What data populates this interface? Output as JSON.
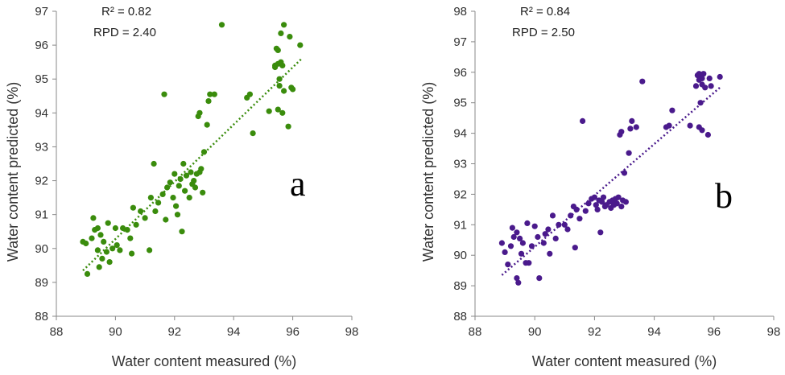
{
  "chart_data": [
    {
      "type": "scatter",
      "panel_label": "a",
      "xlabel": "Water content measured (%)",
      "ylabel": "Water content predicted (%)",
      "xlim": [
        88,
        98
      ],
      "ylim": [
        88,
        97
      ],
      "xticks": [
        88,
        90,
        92,
        94,
        96,
        98
      ],
      "yticks": [
        88,
        89,
        90,
        91,
        92,
        93,
        94,
        95,
        96,
        97
      ],
      "annotations": [
        "R² = 0.82",
        "RPD = 2.40"
      ],
      "color": "#3a8c0c",
      "trendline": {
        "x": [
          88.9,
          96.3
        ],
        "y": [
          89.35,
          95.6
        ],
        "style": "dotted"
      },
      "points": [
        [
          88.9,
          90.2
        ],
        [
          89.0,
          90.15
        ],
        [
          89.05,
          89.25
        ],
        [
          89.2,
          90.3
        ],
        [
          89.25,
          90.9
        ],
        [
          89.3,
          90.55
        ],
        [
          89.4,
          90.6
        ],
        [
          89.4,
          89.95
        ],
        [
          89.45,
          89.45
        ],
        [
          89.5,
          90.4
        ],
        [
          89.55,
          89.7
        ],
        [
          89.6,
          90.2
        ],
        [
          89.7,
          89.9
        ],
        [
          89.75,
          90.75
        ],
        [
          89.8,
          89.6
        ],
        [
          89.9,
          90.0
        ],
        [
          90.0,
          90.6
        ],
        [
          90.05,
          90.1
        ],
        [
          90.15,
          89.95
        ],
        [
          90.25,
          90.6
        ],
        [
          90.4,
          90.55
        ],
        [
          90.5,
          90.3
        ],
        [
          90.55,
          89.85
        ],
        [
          90.6,
          91.2
        ],
        [
          90.7,
          90.7
        ],
        [
          90.85,
          91.1
        ],
        [
          91.0,
          90.9
        ],
        [
          91.15,
          89.95
        ],
        [
          91.2,
          91.5
        ],
        [
          91.3,
          92.5
        ],
        [
          91.35,
          91.1
        ],
        [
          91.45,
          91.35
        ],
        [
          91.6,
          91.6
        ],
        [
          91.65,
          94.55
        ],
        [
          91.7,
          90.85
        ],
        [
          91.75,
          91.8
        ],
        [
          91.85,
          91.95
        ],
        [
          91.95,
          91.5
        ],
        [
          92.0,
          92.2
        ],
        [
          92.05,
          91.25
        ],
        [
          92.1,
          91.0
        ],
        [
          92.15,
          91.85
        ],
        [
          92.2,
          92.05
        ],
        [
          92.25,
          90.5
        ],
        [
          92.3,
          92.5
        ],
        [
          92.35,
          91.7
        ],
        [
          92.4,
          92.15
        ],
        [
          92.5,
          91.5
        ],
        [
          92.55,
          92.25
        ],
        [
          92.6,
          91.9
        ],
        [
          92.65,
          92.0
        ],
        [
          92.7,
          91.8
        ],
        [
          92.75,
          92.2
        ],
        [
          92.8,
          93.9
        ],
        [
          92.85,
          94.0
        ],
        [
          92.85,
          92.25
        ],
        [
          92.9,
          92.35
        ],
        [
          92.95,
          91.65
        ],
        [
          93.0,
          92.85
        ],
        [
          93.1,
          93.65
        ],
        [
          93.15,
          94.35
        ],
        [
          93.2,
          94.55
        ],
        [
          93.35,
          94.55
        ],
        [
          93.6,
          96.6
        ],
        [
          94.45,
          94.45
        ],
        [
          94.55,
          94.55
        ],
        [
          94.65,
          93.4
        ],
        [
          95.2,
          94.05
        ],
        [
          95.4,
          95.4
        ],
        [
          95.45,
          95.9
        ],
        [
          95.5,
          95.85
        ],
        [
          95.5,
          94.1
        ],
        [
          95.55,
          94.8
        ],
        [
          95.55,
          95.0
        ],
        [
          95.6,
          95.5
        ],
        [
          95.6,
          96.35
        ],
        [
          95.65,
          95.4
        ],
        [
          95.65,
          94.0
        ],
        [
          95.7,
          96.6
        ],
        [
          95.7,
          94.65
        ],
        [
          95.85,
          93.6
        ],
        [
          95.9,
          96.25
        ],
        [
          95.95,
          94.75
        ],
        [
          96.0,
          94.7
        ],
        [
          96.25,
          96.0
        ],
        [
          95.4,
          95.35
        ],
        [
          95.5,
          95.45
        ]
      ]
    },
    {
      "type": "scatter",
      "panel_label": "b",
      "xlabel": "Water content measured (%)",
      "ylabel": "Water content predicted (%)",
      "xlim": [
        88,
        98
      ],
      "ylim": [
        88,
        98
      ],
      "xticks": [
        88,
        90,
        92,
        94,
        96,
        98
      ],
      "yticks": [
        88,
        89,
        90,
        91,
        92,
        93,
        94,
        95,
        96,
        97,
        98
      ],
      "annotations": [
        "R² = 0.84",
        "RPD = 2.50"
      ],
      "color": "#4a1a8c",
      "trendline": {
        "x": [
          88.9,
          96.2
        ],
        "y": [
          89.35,
          95.5
        ],
        "style": "dotted"
      },
      "points": [
        [
          88.9,
          90.4
        ],
        [
          89.0,
          90.1
        ],
        [
          89.1,
          89.7
        ],
        [
          89.2,
          90.3
        ],
        [
          89.25,
          90.9
        ],
        [
          89.3,
          90.6
        ],
        [
          89.4,
          90.75
        ],
        [
          89.4,
          89.25
        ],
        [
          89.45,
          89.1
        ],
        [
          89.5,
          90.55
        ],
        [
          89.55,
          90.05
        ],
        [
          89.6,
          90.4
        ],
        [
          89.7,
          89.75
        ],
        [
          89.75,
          91.05
        ],
        [
          89.8,
          89.75
        ],
        [
          89.9,
          90.3
        ],
        [
          90.0,
          90.95
        ],
        [
          90.1,
          90.6
        ],
        [
          90.15,
          89.25
        ],
        [
          90.3,
          90.4
        ],
        [
          90.35,
          90.7
        ],
        [
          90.45,
          90.85
        ],
        [
          90.5,
          90.05
        ],
        [
          90.6,
          91.3
        ],
        [
          90.7,
          90.55
        ],
        [
          90.8,
          91.0
        ],
        [
          91.0,
          91.0
        ],
        [
          91.1,
          90.85
        ],
        [
          91.2,
          91.3
        ],
        [
          91.3,
          91.6
        ],
        [
          91.35,
          90.25
        ],
        [
          91.4,
          91.5
        ],
        [
          91.5,
          91.2
        ],
        [
          91.6,
          94.4
        ],
        [
          91.7,
          91.45
        ],
        [
          91.8,
          91.7
        ],
        [
          91.9,
          91.85
        ],
        [
          92.0,
          91.9
        ],
        [
          92.05,
          91.65
        ],
        [
          92.1,
          91.5
        ],
        [
          92.15,
          91.8
        ],
        [
          92.2,
          90.75
        ],
        [
          92.25,
          91.75
        ],
        [
          92.3,
          91.9
        ],
        [
          92.35,
          91.6
        ],
        [
          92.4,
          91.65
        ],
        [
          92.5,
          91.75
        ],
        [
          92.55,
          91.55
        ],
        [
          92.6,
          91.8
        ],
        [
          92.65,
          91.65
        ],
        [
          92.7,
          91.85
        ],
        [
          92.75,
          91.7
        ],
        [
          92.8,
          91.9
        ],
        [
          92.85,
          93.95
        ],
        [
          92.9,
          94.05
        ],
        [
          92.9,
          91.6
        ],
        [
          92.95,
          91.8
        ],
        [
          93.0,
          92.7
        ],
        [
          93.05,
          91.75
        ],
        [
          93.15,
          93.35
        ],
        [
          93.2,
          94.15
        ],
        [
          93.25,
          94.4
        ],
        [
          93.4,
          94.2
        ],
        [
          93.6,
          95.7
        ],
        [
          94.4,
          94.2
        ],
        [
          94.5,
          94.25
        ],
        [
          94.6,
          94.75
        ],
        [
          95.2,
          94.25
        ],
        [
          95.4,
          95.55
        ],
        [
          95.45,
          95.9
        ],
        [
          95.5,
          95.95
        ],
        [
          95.5,
          94.2
        ],
        [
          95.55,
          95.0
        ],
        [
          95.6,
          95.6
        ],
        [
          95.6,
          94.1
        ],
        [
          95.65,
          95.95
        ],
        [
          95.7,
          95.5
        ],
        [
          95.8,
          93.95
        ],
        [
          95.85,
          95.8
        ],
        [
          95.9,
          95.55
        ],
        [
          96.2,
          95.85
        ],
        [
          95.5,
          95.75
        ],
        [
          95.6,
          95.8
        ]
      ]
    }
  ]
}
